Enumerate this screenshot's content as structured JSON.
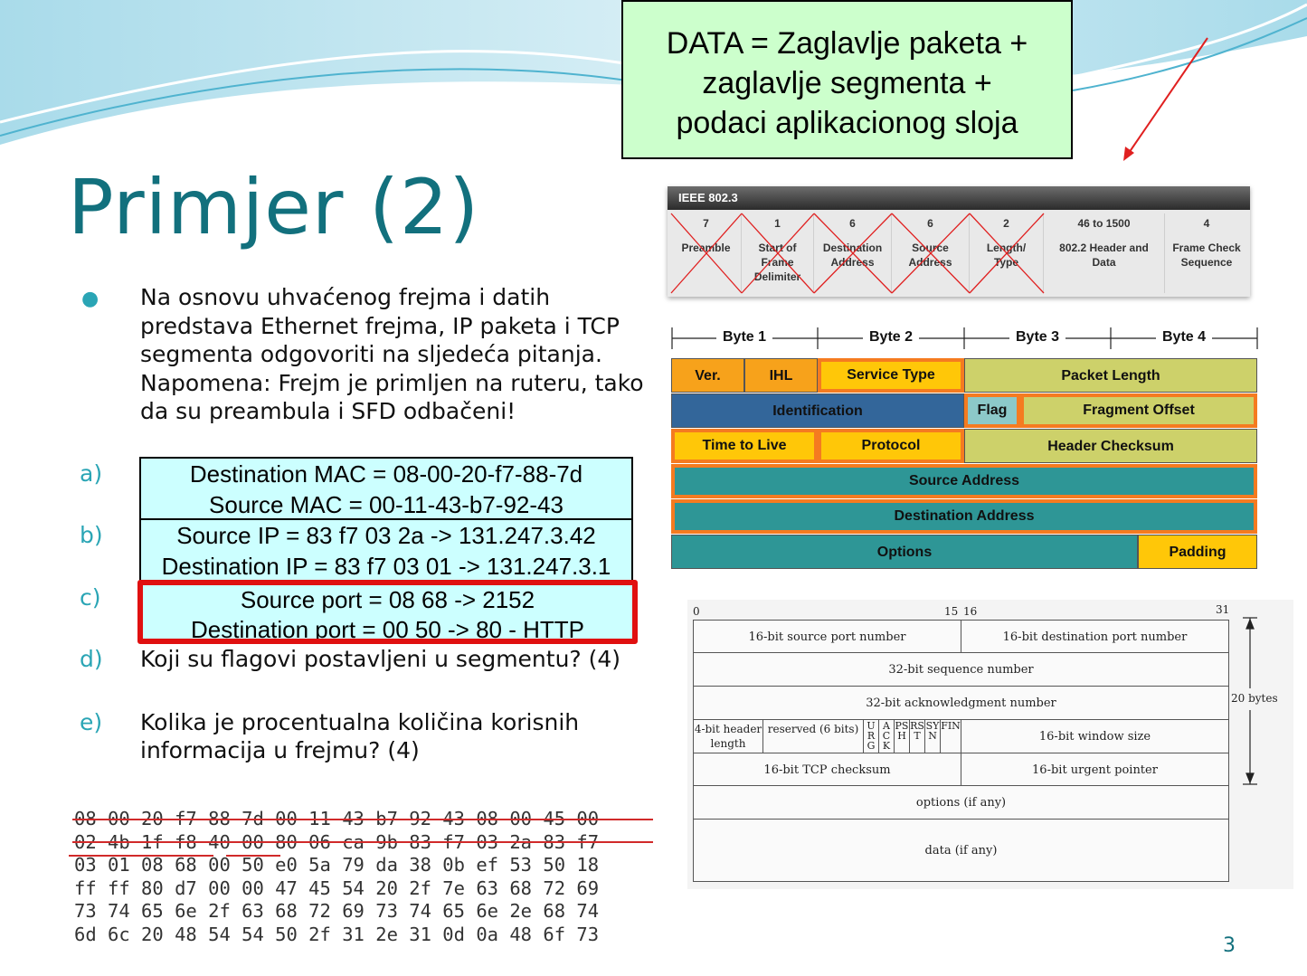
{
  "callout": {
    "lines": [
      "DATA = Zaglavlje paketa +",
      "zaglavlje segmenta +",
      "podaci aplikacionog sloja"
    ]
  },
  "title": "Primjer (2)",
  "intro": "Na osnovu uhvaćenog frejma i datih predstava Ethernet frejma, IP paketa i TCP segmenta odgovoriti na sljedeća pitanja. Napomena: Frejm je primljen na ruteru, tako da su preambula i SFD odbačeni!",
  "questions": {
    "a": {
      "marker": "a)",
      "lines": [
        "Destination MAC = 08-00-20-f7-88-7d",
        "Source MAC = 00-11-43-b7-92-43"
      ]
    },
    "b": {
      "marker": "b)",
      "lines": [
        "Source IP = 83 f7 03 2a -> 131.247.3.42",
        "Destination IP = 83 f7 03 01 -> 131.247.3.1"
      ]
    },
    "c": {
      "marker": "c)",
      "lines": [
        "Source port = 08 68 -> 2152",
        "Destination port = 00 50 -> 80 - HTTP"
      ]
    },
    "d": {
      "marker": "d)",
      "text": "Koji su flagovi postavljeni u segmentu? (4)"
    },
    "e": {
      "marker": "e)",
      "text": "Kolika je procentualna količina korisnih informacija u frejmu? (4)"
    }
  },
  "hex_lines": [
    "08 00 20 f7 88 7d 00 11 43 b7 92 43 08 00 45 00",
    "02 4b 1f f8 40 00 80 06 ca 9b 83 f7 03 2a 83 f7",
    "03 01 08 68 00 50 e0 5a 79 da 38 0b ef 53 50 18",
    "ff ff 80 d7 00 00 47 45 54 20 2f 7e 63 68 72 69",
    "73 74 65 6e 2f 63 68 72 69 73 74 65 6e 2e 68 74",
    "6d 6c 20 48 54 54 50 2f 31 2e 31 0d 0a 48 6f 73"
  ],
  "page_number": "3",
  "ethernet": {
    "header": "IEEE 802.3",
    "fields": [
      {
        "size": "7",
        "label": "Preamble"
      },
      {
        "size": "1",
        "label": "Start of Frame Delimiter"
      },
      {
        "size": "6",
        "label": "Destination Address"
      },
      {
        "size": "6",
        "label": "Source Address"
      },
      {
        "size": "2",
        "label": "Length/ Type"
      },
      {
        "size": "46 to 1500",
        "label": "802.2 Header and Data"
      },
      {
        "size": "4",
        "label": "Frame Check Sequence"
      }
    ]
  },
  "ip_header": {
    "bytes": [
      "Byte 1",
      "Byte 2",
      "Byte 3",
      "Byte 4"
    ],
    "fields": {
      "ver": "Ver.",
      "ihl": "IHL",
      "service_type": "Service Type",
      "packet_length": "Packet Length",
      "identification": "Identification",
      "flag": "Flag",
      "fragment_offset": "Fragment Offset",
      "ttl": "Time to Live",
      "protocol": "Protocol",
      "header_checksum": "Header Checksum",
      "source_address": "Source Address",
      "destination_address": "Destination Address",
      "options": "Options",
      "padding": "Padding"
    },
    "colors": {
      "orange": "#f7a21b",
      "yellow": "#ffc708",
      "olive": "#cdd16a",
      "blue": "#33669a",
      "teal": "#2e9696",
      "light_teal": "#8cc9c9",
      "highlight": "#f57b20"
    }
  },
  "tcp_header": {
    "bit_labels": {
      "start": "0",
      "b15": "15",
      "b16": "16",
      "end": "31"
    },
    "side_label": "20 bytes",
    "source_port": "16-bit source port number",
    "destination_port": "16-bit destination port number",
    "sequence": "32-bit sequence number",
    "ack": "32-bit acknowledgment number",
    "header_length": "4-bit header length",
    "reserved": "reserved (6 bits)",
    "flags": [
      "URG",
      "ACK",
      "PSH",
      "RST",
      "SYN",
      "FIN"
    ],
    "window": "16-bit window size",
    "checksum": "16-bit TCP checksum",
    "urgent": "16-bit urgent pointer",
    "options": "options (if any)",
    "data": "data (if any)"
  }
}
